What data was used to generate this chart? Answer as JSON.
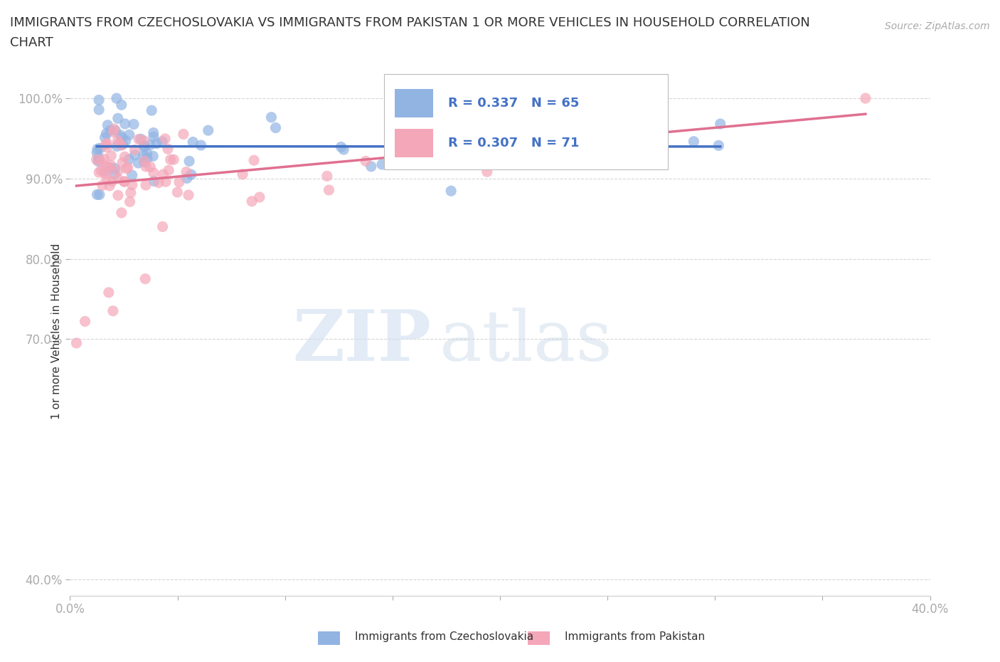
{
  "title_line1": "IMMIGRANTS FROM CZECHOSLOVAKIA VS IMMIGRANTS FROM PAKISTAN 1 OR MORE VEHICLES IN HOUSEHOLD CORRELATION",
  "title_line2": "CHART",
  "source": "Source: ZipAtlas.com",
  "ylabel": "1 or more Vehicles in Household",
  "yaxis_ticks": [
    "40.0%",
    "70.0%",
    "80.0%",
    "90.0%",
    "100.0%"
  ],
  "yaxis_values": [
    0.4,
    0.7,
    0.8,
    0.9,
    1.0
  ],
  "xaxis_range": [
    0.0,
    0.4
  ],
  "yaxis_range": [
    0.38,
    1.04
  ],
  "watermark_zip": "ZIP",
  "watermark_atlas": "atlas",
  "legend_czecho": "Immigrants from Czechoslovakia",
  "legend_pakistan": "Immigrants from Pakistan",
  "R_czecho": 0.337,
  "N_czecho": 65,
  "R_pakistan": 0.307,
  "N_pakistan": 71,
  "color_czecho": "#92b4e3",
  "color_pakistan": "#f4a7b9",
  "line_color_czecho": "#4472c4",
  "line_color_pakistan": "#e07090",
  "seed_czecho": 17,
  "seed_pakistan": 42
}
